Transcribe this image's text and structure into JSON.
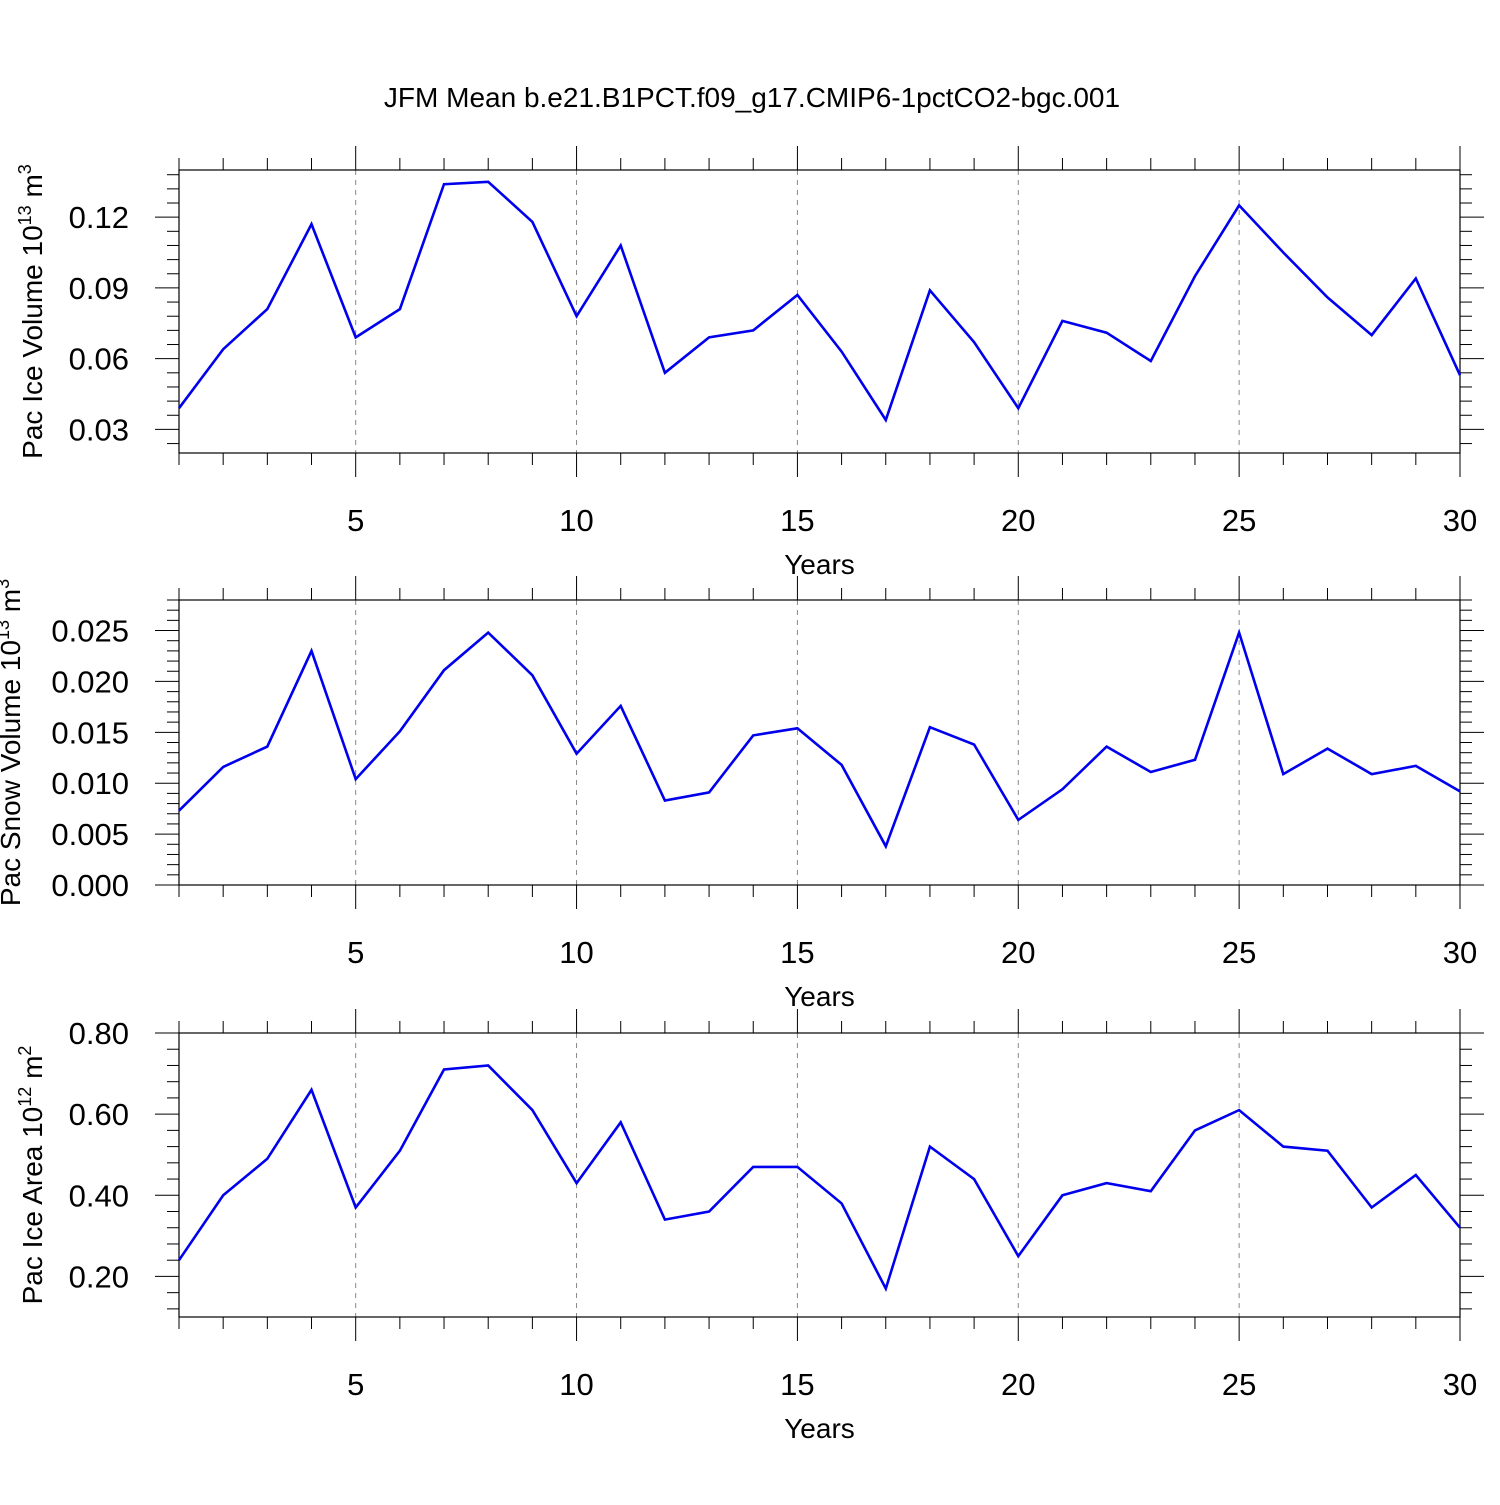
{
  "title": "JFM Mean b.e21.B1PCT.f09_g17.CMIP6-1pctCO2-bgc.001",
  "colors": {
    "line": "#0000ee",
    "axis": "#000000",
    "grid": "#888888"
  },
  "chart_data": [
    {
      "type": "line",
      "ylabel": {
        "main": "Pac Ice Volume 10",
        "sup": "13",
        "mid": " m",
        "sup2": "3"
      },
      "xlabel": "Years",
      "xlim": [
        1,
        30
      ],
      "ylim": [
        0.02,
        0.14
      ],
      "xticks": [
        5,
        10,
        15,
        20,
        25,
        30
      ],
      "yticks": [
        0.03,
        0.06,
        0.09,
        0.12
      ],
      "ytick_labels": [
        "0.03",
        "0.06",
        "0.09",
        "0.12"
      ],
      "x": [
        1,
        2,
        3,
        4,
        5,
        6,
        7,
        8,
        9,
        10,
        11,
        12,
        13,
        14,
        15,
        16,
        17,
        18,
        19,
        20,
        21,
        22,
        23,
        24,
        25,
        26,
        27,
        28,
        29,
        30
      ],
      "series": [
        {
          "values": [
            0.039,
            0.064,
            0.081,
            0.117,
            0.069,
            0.081,
            0.134,
            0.135,
            0.118,
            0.078,
            0.108,
            0.054,
            0.069,
            0.072,
            0.087,
            0.063,
            0.034,
            0.089,
            0.067,
            0.039,
            0.076,
            0.071,
            0.059,
            0.095,
            0.125,
            0.105,
            0.086,
            0.07,
            0.094,
            0.053
          ]
        }
      ]
    },
    {
      "type": "line",
      "ylabel": {
        "main": "Pac Snow Volume 10",
        "sup": "13",
        "mid": " m",
        "sup2": "3"
      },
      "xlabel": "Years",
      "xlim": [
        1,
        30
      ],
      "ylim": [
        0.0,
        0.028
      ],
      "xticks": [
        5,
        10,
        15,
        20,
        25,
        30
      ],
      "yticks": [
        0.0,
        0.005,
        0.01,
        0.015,
        0.02,
        0.025
      ],
      "ytick_labels": [
        "0.000",
        "0.005",
        "0.010",
        "0.015",
        "0.020",
        "0.025"
      ],
      "x": [
        1,
        2,
        3,
        4,
        5,
        6,
        7,
        8,
        9,
        10,
        11,
        12,
        13,
        14,
        15,
        16,
        17,
        18,
        19,
        20,
        21,
        22,
        23,
        24,
        25,
        26,
        27,
        28,
        29,
        30
      ],
      "series": [
        {
          "values": [
            0.0073,
            0.0116,
            0.0136,
            0.023,
            0.0104,
            0.0151,
            0.0211,
            0.0248,
            0.0206,
            0.0129,
            0.0176,
            0.0083,
            0.0091,
            0.0147,
            0.0154,
            0.0118,
            0.0038,
            0.0155,
            0.0138,
            0.0064,
            0.0094,
            0.0136,
            0.0111,
            0.0123,
            0.0248,
            0.0109,
            0.0134,
            0.0109,
            0.0117,
            0.0092
          ]
        }
      ]
    },
    {
      "type": "line",
      "ylabel": {
        "main": "Pac Ice Area 10",
        "sup": "12",
        "mid": " m",
        "sup2": "2"
      },
      "xlabel": "Years",
      "xlim": [
        1,
        30
      ],
      "ylim": [
        0.1,
        0.8
      ],
      "xticks": [
        5,
        10,
        15,
        20,
        25,
        30
      ],
      "yticks": [
        0.2,
        0.4,
        0.6,
        0.8
      ],
      "ytick_labels": [
        "0.20",
        "0.40",
        "0.60",
        "0.80"
      ],
      "x": [
        1,
        2,
        3,
        4,
        5,
        6,
        7,
        8,
        9,
        10,
        11,
        12,
        13,
        14,
        15,
        16,
        17,
        18,
        19,
        20,
        21,
        22,
        23,
        24,
        25,
        26,
        27,
        28,
        29,
        30
      ],
      "series": [
        {
          "values": [
            0.24,
            0.4,
            0.49,
            0.66,
            0.37,
            0.51,
            0.71,
            0.72,
            0.61,
            0.43,
            0.58,
            0.34,
            0.36,
            0.47,
            0.47,
            0.38,
            0.17,
            0.52,
            0.44,
            0.25,
            0.4,
            0.43,
            0.41,
            0.56,
            0.61,
            0.52,
            0.51,
            0.37,
            0.45,
            0.32
          ]
        }
      ]
    }
  ]
}
